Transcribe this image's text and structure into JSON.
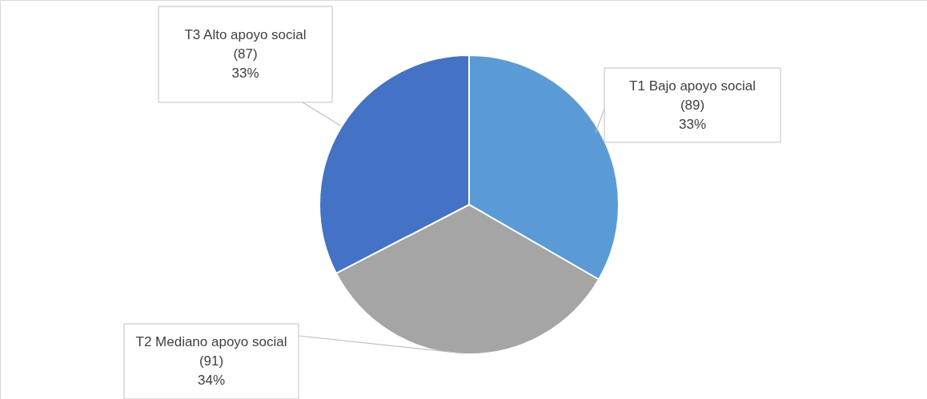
{
  "chart_data": {
    "type": "pie",
    "categories": [
      "T1 Bajo apoyo social",
      "T2 Mediano apoyo social",
      "T3 Alto apoyo social"
    ],
    "values": [
      89,
      91,
      87
    ],
    "colors": [
      "#5b9bd5",
      "#a5a5a5",
      "#4472c4"
    ],
    "value_labels": [
      "(89) 33%",
      "(91) 34%",
      "(87) 33%"
    ]
  }
}
